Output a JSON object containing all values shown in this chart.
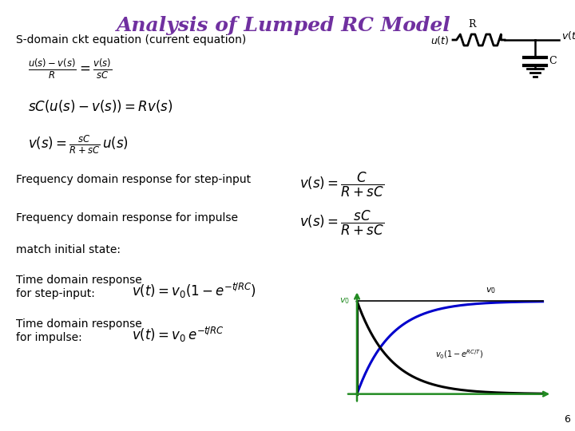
{
  "title": "Analysis of Lumped RC Model",
  "title_color": "#7030A0",
  "title_fontsize": 18,
  "bg_color": "#FFFFFF",
  "slide_number": "6",
  "text_color": "#000000",
  "green_color": "#228B22",
  "blue_color": "#0000CC",
  "label_s_domain": "S-domain ckt equation (current equation)",
  "eq1": "$\\frac{u(s)-v(s)}{R} = \\frac{v(s)}{sC}$",
  "eq2": "$sC(u(s)-v(s)) = Rv(s)$",
  "eq3": "$v(s) = \\frac{sC}{R+sC}\\,u(s)$",
  "label_freq_step": "Frequency domain response for step-input",
  "eq_freq_step": "$v(s) = \\dfrac{C}{R+sC}$",
  "label_freq_impulse": "Frequency domain response for impulse",
  "eq_freq_impulse": "$v(s) = \\dfrac{sC}{R+sC}$",
  "label_match": "match initial state:",
  "label_time_step1": "Time domain response",
  "label_time_step2": "for step-input:",
  "eq_time_step": "$v(t) = v_0\\left(1-e^{-t\\!/RC}\\right)$",
  "label_time_impulse1": "Time domain response",
  "label_time_impulse2": "for impulse:",
  "eq_time_impulse": "$v(t) = v_0\\,e^{-t\\!/RC}$",
  "circuit_R_label": "R",
  "circuit_C_label": "C",
  "circuit_ut_label": "$u(t)$",
  "circuit_vt_label": "$v(t)$",
  "v0_label": "$v_0$",
  "v0_step_label": "$v_0$",
  "v0_curve_label": "$v_0(1-e^{RC/T})$"
}
